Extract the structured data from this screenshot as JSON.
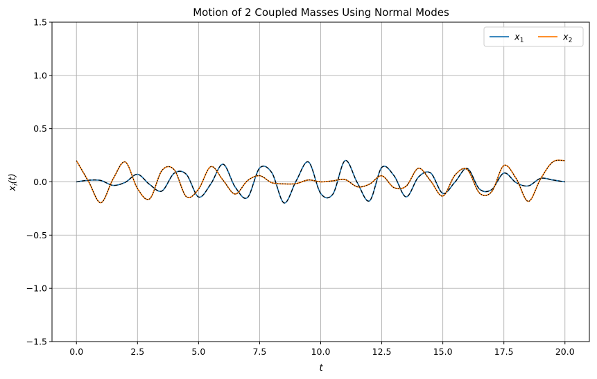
{
  "chart_data": {
    "type": "line",
    "title": "Motion of 2 Coupled Masses Using Normal Modes",
    "xlabel": "t",
    "ylabel": "x_i(t)",
    "xlim": [
      -1.0,
      21.0
    ],
    "ylim": [
      -1.5,
      1.5
    ],
    "x_ticks": [
      "0.0",
      "2.5",
      "5.0",
      "7.5",
      "10.0",
      "12.5",
      "15.0",
      "17.5",
      "20.0"
    ],
    "y_ticks": [
      "−1.5",
      "−1.0",
      "−0.5",
      "0.0",
      "0.5",
      "1.0",
      "1.5"
    ],
    "grid": true,
    "legend": {
      "placement": "top-right",
      "columns": 2
    },
    "x": [
      0,
      0.5,
      1,
      1.5,
      2,
      2.5,
      3,
      3.5,
      4,
      4.5,
      5,
      5.5,
      6,
      6.5,
      7,
      7.5,
      8,
      8.5,
      9,
      9.5,
      10,
      10.5,
      11,
      11.5,
      12,
      12.5,
      13,
      13.5,
      14,
      14.5,
      15,
      15.5,
      16,
      16.5,
      17,
      17.5,
      18,
      18.5,
      19,
      19.5,
      20
    ],
    "series": [
      {
        "name": "x_1",
        "color": "#1f77b4",
        "overlay": "dashed-black",
        "values": [
          0.0,
          0.016,
          0.013,
          -0.033,
          -0.004,
          0.071,
          -0.025,
          -0.086,
          0.081,
          0.071,
          -0.142,
          -0.02,
          0.166,
          -0.049,
          -0.148,
          0.13,
          0.086,
          -0.198,
          0.011,
          0.187,
          -0.109,
          -0.115,
          0.2,
          -0.008,
          -0.178,
          0.136,
          0.059,
          -0.141,
          0.045,
          0.084,
          -0.108,
          -0.001,
          0.126,
          -0.067,
          -0.073,
          0.083,
          -0.007,
          -0.038,
          0.033,
          0.018,
          0.0
        ]
      },
      {
        "name": "x_2",
        "color": "#ff7f0e",
        "overlay": "dotted-black",
        "values": [
          0.2,
          0.002,
          -0.196,
          0.027,
          0.187,
          -0.063,
          -0.159,
          0.107,
          0.115,
          -0.139,
          -0.068,
          0.143,
          0.017,
          -0.114,
          0.011,
          0.058,
          -0.008,
          -0.019,
          -0.016,
          0.018,
          0.0,
          0.01,
          0.022,
          -0.046,
          -0.021,
          0.057,
          -0.054,
          -0.04,
          0.128,
          0.009,
          -0.133,
          0.064,
          0.117,
          -0.105,
          -0.093,
          0.154,
          0.033,
          -0.183,
          0.027,
          0.187,
          0.2
        ]
      }
    ]
  }
}
